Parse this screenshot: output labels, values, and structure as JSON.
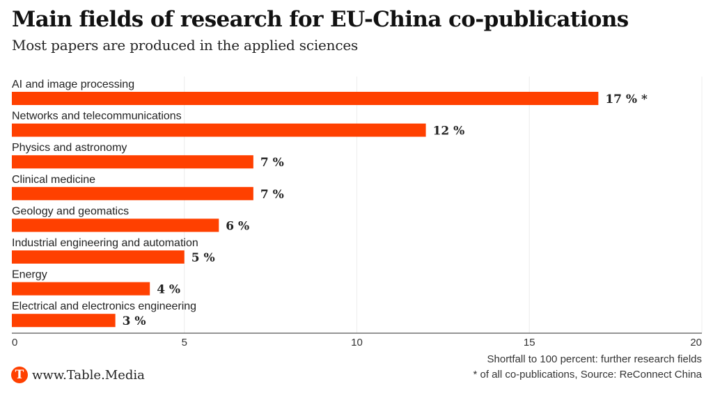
{
  "header": {
    "title": "Main fields of research for EU-China co-publications",
    "subtitle": "Most papers are produced in the applied sciences"
  },
  "colors": {
    "bar": "#ff4000",
    "grid": "#ececec",
    "axis": "#555555",
    "logo": "#ff4000"
  },
  "chart_data": {
    "type": "bar",
    "orientation": "horizontal",
    "title": "Main fields of research for EU-China co-publications",
    "subtitle": "Most papers are produced in the applied sciences",
    "categories": [
      "AI and image processing",
      "Networks and telecommunications",
      "Physics and astronomy",
      "Clinical medicine",
      "Geology and geomatics",
      "Industrial engineering and automation",
      "Energy",
      "Electrical and electronics engineering"
    ],
    "values": [
      17,
      12,
      7,
      7,
      6,
      5,
      4,
      3
    ],
    "value_labels": [
      "17 % *",
      "12 %",
      "7 %",
      "7 %",
      "6 %",
      "5 %",
      "4 %",
      "3 %"
    ],
    "unit": "%",
    "xlabel": "",
    "ylabel": "",
    "xlim": [
      0,
      20
    ],
    "xticks": [
      0,
      5,
      10,
      15,
      20
    ],
    "grid": true,
    "legend": "none"
  },
  "footer": {
    "note1": "Shortfall to 100 percent: further research fields",
    "note2": "* of all co-publications, Source: ReConnect China",
    "brand_logo_letter": "T",
    "brand_text": "www.Table.Media"
  }
}
